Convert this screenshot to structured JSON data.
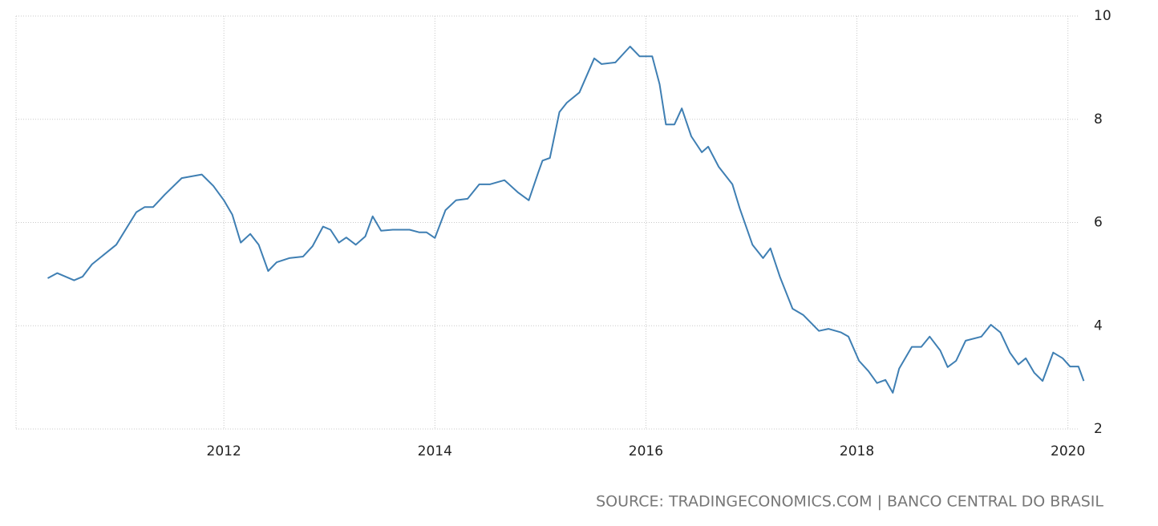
{
  "chart_data": {
    "type": "line",
    "source": "SOURCE: TRADINGECONOMICS.COM | BANCO CENTRAL DO BRASIL",
    "x": [
      2010.33,
      2010.42,
      2010.58,
      2010.66,
      2010.75,
      2010.98,
      2011.17,
      2011.25,
      2011.33,
      2011.44,
      2011.6,
      2011.79,
      2011.9,
      2012.0,
      2012.08,
      2012.16,
      2012.25,
      2012.33,
      2012.42,
      2012.5,
      2012.62,
      2012.75,
      2012.84,
      2012.94,
      2013.01,
      2013.09,
      2013.16,
      2013.25,
      2013.34,
      2013.41,
      2013.49,
      2013.6,
      2013.76,
      2013.85,
      2013.92,
      2014.0,
      2014.1,
      2014.2,
      2014.31,
      2014.42,
      2014.52,
      2014.66,
      2014.79,
      2014.89,
      2014.98,
      2015.02,
      2015.09,
      2015.18,
      2015.25,
      2015.37,
      2015.51,
      2015.58,
      2015.71,
      2015.85,
      2015.94,
      2016.01,
      2016.06,
      2016.13,
      2016.19,
      2016.27,
      2016.34,
      2016.43,
      2016.53,
      2016.59,
      2016.69,
      2016.82,
      2016.89,
      2017.01,
      2017.11,
      2017.18,
      2017.27,
      2017.39,
      2017.49,
      2017.64,
      2017.73,
      2017.85,
      2017.92,
      2018.02,
      2018.11,
      2018.19,
      2018.27,
      2018.34,
      2018.4,
      2018.52,
      2018.61,
      2018.69,
      2018.79,
      2018.86,
      2018.94,
      2019.03,
      2019.18,
      2019.27,
      2019.36,
      2019.45,
      2019.53,
      2019.6,
      2019.68,
      2019.76,
      2019.86,
      2019.95,
      2020.02,
      2020.1,
      2020.15
    ],
    "values": [
      4.92,
      5.02,
      4.88,
      4.95,
      5.19,
      5.57,
      6.2,
      6.3,
      6.3,
      6.54,
      6.86,
      6.93,
      6.71,
      6.43,
      6.15,
      5.61,
      5.78,
      5.57,
      5.06,
      5.23,
      5.31,
      5.34,
      5.54,
      5.92,
      5.86,
      5.61,
      5.71,
      5.57,
      5.73,
      6.12,
      5.84,
      5.86,
      5.86,
      5.81,
      5.81,
      5.7,
      6.24,
      6.43,
      6.46,
      6.74,
      6.74,
      6.82,
      6.58,
      6.43,
      6.97,
      7.2,
      7.25,
      8.14,
      8.32,
      8.52,
      9.18,
      9.07,
      9.1,
      9.41,
      9.22,
      9.22,
      9.22,
      8.68,
      7.9,
      7.9,
      8.21,
      7.67,
      7.36,
      7.47,
      7.08,
      6.74,
      6.27,
      5.57,
      5.31,
      5.5,
      4.95,
      4.33,
      4.21,
      3.9,
      3.94,
      3.87,
      3.79,
      3.32,
      3.12,
      2.89,
      2.95,
      2.7,
      3.17,
      3.59,
      3.59,
      3.79,
      3.52,
      3.2,
      3.32,
      3.71,
      3.79,
      4.02,
      3.87,
      3.48,
      3.25,
      3.37,
      3.09,
      2.93,
      3.48,
      3.37,
      3.21,
      3.21,
      2.93
    ],
    "color": "#3f7fb3",
    "xlim": [
      2010.03,
      2020.2
    ],
    "xticks": [
      2012,
      2014,
      2016,
      2018,
      2020
    ],
    "ylim": [
      2,
      10
    ],
    "yticks": [
      2,
      4,
      6,
      8,
      10
    ],
    "grid": true
  }
}
